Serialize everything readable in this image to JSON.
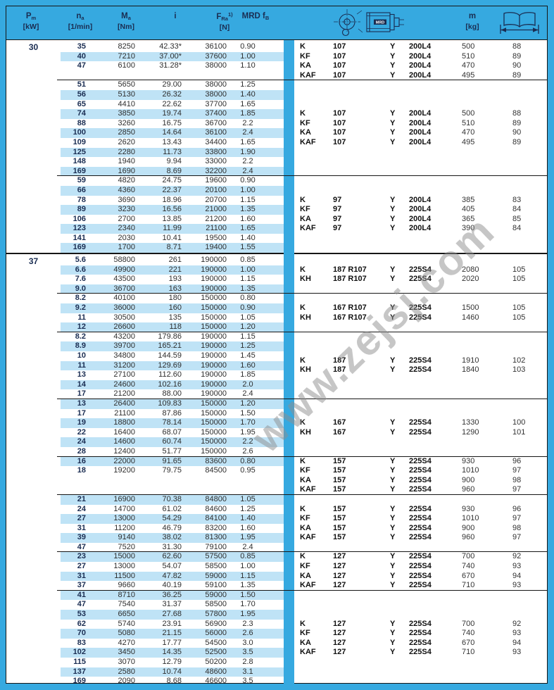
{
  "watermark": "www.zejsj.com",
  "colors": {
    "page_blue": "#36a9e0",
    "row_highlight_blue": "#bfe3f6",
    "header_text_navy": "#1a2d52",
    "line_black": "#161616"
  },
  "header": {
    "pm_main": "P",
    "pm_sub": "m",
    "pm_unit": "[kW]",
    "na_main": "n",
    "na_sub": "a",
    "na_unit": "[1/min]",
    "ma_main": "M",
    "ma_sub": "a",
    "ma_unit": "[Nm]",
    "i_label": "i",
    "fra_main": "F",
    "fra_sub": "Ra",
    "fra_sup": "1)",
    "fra_unit": "[N]",
    "mrd_main": "MRD f",
    "mrd_sub": "B",
    "m_main": "m",
    "m_unit": "[kg]",
    "gearmotor_icon": "gearmotor-drawing-icon",
    "mrd_icon_label": "MRD",
    "book_icon": "open-book-page-range-icon"
  },
  "columns_note": "row cells order: na, Ma, i, FRa, MRD fB ; annotation cells order: type, size, Y, motor, mass, page",
  "sections": [
    {
      "pm": "30",
      "groups": [
        {
          "shade_start": "white",
          "gap_after": 1,
          "rows": [
            [
              "35",
              "8250",
              "42.33*",
              "36100",
              "0.90"
            ],
            [
              "40",
              "7210",
              "37.00*",
              "37600",
              "1.00"
            ],
            [
              "47",
              "6100",
              "31.28*",
              "38000",
              "1.10"
            ]
          ],
          "annotation": [
            [
              "K",
              "107",
              "Y",
              "200L4",
              "500",
              "88"
            ],
            [
              "KF",
              "107",
              "Y",
              "200L4",
              "510",
              "89"
            ],
            [
              "KA",
              "107",
              "Y",
              "200L4",
              "470",
              "90"
            ],
            [
              "KAF",
              "107",
              "Y",
              "200L4",
              "495",
              "89"
            ]
          ]
        },
        {
          "shade_start": "white",
          "gap_after": 0,
          "rows": [
            [
              "51",
              "5650",
              "29.00",
              "38000",
              "1.25"
            ],
            [
              "56",
              "5130",
              "26.32",
              "38000",
              "1.40"
            ],
            [
              "65",
              "4410",
              "22.62",
              "37700",
              "1.65"
            ],
            [
              "74",
              "3850",
              "19.74",
              "37400",
              "1.85"
            ],
            [
              "88",
              "3260",
              "16.75",
              "36700",
              "2.2"
            ],
            [
              "100",
              "2850",
              "14.64",
              "36100",
              "2.4"
            ],
            [
              "109",
              "2620",
              "13.43",
              "34400",
              "1.65"
            ],
            [
              "125",
              "2280",
              "11.73",
              "33800",
              "1.90"
            ],
            [
              "148",
              "1940",
              "9.94",
              "33000",
              "2.2"
            ],
            [
              "169",
              "1690",
              "8.69",
              "32200",
              "2.4"
            ]
          ],
          "annotation": [
            [
              "K",
              "107",
              "Y",
              "200L4",
              "500",
              "88"
            ],
            [
              "KF",
              "107",
              "Y",
              "200L4",
              "510",
              "89"
            ],
            [
              "KA",
              "107",
              "Y",
              "200L4",
              "470",
              "90"
            ],
            [
              "KAF",
              "107",
              "Y",
              "200L4",
              "495",
              "89"
            ]
          ]
        },
        {
          "shade_start": "white",
          "gap_after": 0,
          "rows": [
            [
              "59",
              "4820",
              "24.75",
              "19600",
              "0.90"
            ],
            [
              "66",
              "4360",
              "22.37",
              "20100",
              "1.00"
            ],
            [
              "78",
              "3690",
              "18.96",
              "20700",
              "1.15"
            ],
            [
              "89",
              "3230",
              "16.56",
              "21000",
              "1.35"
            ],
            [
              "106",
              "2700",
              "13.85",
              "21200",
              "1.60"
            ],
            [
              "123",
              "2340",
              "11.99",
              "21100",
              "1.65"
            ],
            [
              "141",
              "2030",
              "10.41",
              "19500",
              "1.40"
            ],
            [
              "169",
              "1700",
              "8.71",
              "19400",
              "1.55"
            ]
          ],
          "annotation": [
            [
              "K",
              "97",
              "Y",
              "200L4",
              "385",
              "83"
            ],
            [
              "KF",
              "97",
              "Y",
              "200L4",
              "405",
              "84"
            ],
            [
              "KA",
              "97",
              "Y",
              "200L4",
              "365",
              "85"
            ],
            [
              "KAF",
              "97",
              "Y",
              "200L4",
              "390",
              "84"
            ]
          ]
        }
      ]
    },
    {
      "pm": "37",
      "groups": [
        {
          "shade_start": "white",
          "gap_after": 0,
          "rows": [
            [
              "5.6",
              "58800",
              "261",
              "190000",
              "0.85"
            ],
            [
              "6.6",
              "49900",
              "221",
              "190000",
              "1.00"
            ],
            [
              "7.6",
              "43500",
              "193",
              "190000",
              "1.15"
            ],
            [
              "9.0",
              "36700",
              "163",
              "190000",
              "1.35"
            ]
          ],
          "annotation": [
            [
              "K",
              "187 R107",
              "Y",
              "225S4",
              "2080",
              "105"
            ],
            [
              "KH",
              "187 R107",
              "Y",
              "225S4",
              "2020",
              "105"
            ]
          ]
        },
        {
          "shade_start": "white",
          "gap_after": 0,
          "rows": [
            [
              "8.2",
              "40100",
              "180",
              "150000",
              "0.80"
            ],
            [
              "9.2",
              "36000",
              "160",
              "150000",
              "0.90"
            ],
            [
              "11",
              "30500",
              "135",
              "150000",
              "1.05"
            ],
            [
              "12",
              "26600",
              "118",
              "150000",
              "1.20"
            ]
          ],
          "annotation": [
            [
              "K",
              "167 R107",
              "Y",
              "225S4",
              "1500",
              "105"
            ],
            [
              "KH",
              "167 R107",
              "Y",
              "225S4",
              "1460",
              "105"
            ]
          ]
        },
        {
          "shade_start": "white",
          "gap_after": 0,
          "rows": [
            [
              "8.2",
              "43200",
              "179.86",
              "190000",
              "1.15"
            ],
            [
              "8.9",
              "39700",
              "165.21",
              "190000",
              "1.25"
            ],
            [
              "10",
              "34800",
              "144.59",
              "190000",
              "1.45"
            ],
            [
              "11",
              "31200",
              "129.69",
              "190000",
              "1.60"
            ],
            [
              "13",
              "27100",
              "112.60",
              "190000",
              "1.85"
            ],
            [
              "14",
              "24600",
              "102.16",
              "190000",
              "2.0"
            ],
            [
              "17",
              "21200",
              "88.00",
              "190000",
              "2.4"
            ]
          ],
          "annotation": [
            [
              "K",
              "187",
              "Y",
              "225S4",
              "1910",
              "102"
            ],
            [
              "KH",
              "187",
              "Y",
              "225S4",
              "1840",
              "103"
            ]
          ]
        },
        {
          "shade_start": "blue",
          "gap_after": 0,
          "rows": [
            [
              "13",
              "26400",
              "109.83",
              "150000",
              "1.20"
            ],
            [
              "17",
              "21100",
              "87.86",
              "150000",
              "1.50"
            ],
            [
              "19",
              "18800",
              "78.14",
              "150000",
              "1.70"
            ],
            [
              "22",
              "16400",
              "68.07",
              "150000",
              "1.95"
            ],
            [
              "24",
              "14600",
              "60.74",
              "150000",
              "2.2"
            ],
            [
              "28",
              "12400",
              "51.77",
              "150000",
              "2.6"
            ]
          ],
          "annotation": [
            [
              "K",
              "167",
              "Y",
              "225S4",
              "1330",
              "100"
            ],
            [
              "KH",
              "167",
              "Y",
              "225S4",
              "1290",
              "101"
            ]
          ]
        },
        {
          "shade_start": "blue",
          "gap_after": 2,
          "rows": [
            [
              "16",
              "22000",
              "91.65",
              "83600",
              "0.80"
            ],
            [
              "18",
              "19200",
              "79.75",
              "84500",
              "0.95"
            ]
          ],
          "annotation": [
            [
              "K",
              "157",
              "Y",
              "225S4",
              "930",
              "96"
            ],
            [
              "KF",
              "157",
              "Y",
              "225S4",
              "1010",
              "97"
            ],
            [
              "KA",
              "157",
              "Y",
              "225S4",
              "900",
              "98"
            ],
            [
              "KAF",
              "157",
              "Y",
              "225S4",
              "960",
              "97"
            ]
          ]
        },
        {
          "shade_start": "blue",
          "gap_after": 0,
          "rows": [
            [
              "21",
              "16900",
              "70.38",
              "84800",
              "1.05"
            ],
            [
              "24",
              "14700",
              "61.02",
              "84600",
              "1.25"
            ],
            [
              "27",
              "13000",
              "54.29",
              "84100",
              "1.40"
            ],
            [
              "31",
              "11200",
              "46.79",
              "83200",
              "1.60"
            ],
            [
              "39",
              "9140",
              "38.02",
              "81300",
              "1.95"
            ],
            [
              "47",
              "7520",
              "31.30",
              "79100",
              "2.4"
            ]
          ],
          "annotation": [
            [
              "K",
              "157",
              "Y",
              "225S4",
              "930",
              "96"
            ],
            [
              "KF",
              "157",
              "Y",
              "225S4",
              "1010",
              "97"
            ],
            [
              "KA",
              "157",
              "Y",
              "225S4",
              "900",
              "98"
            ],
            [
              "KAF",
              "157",
              "Y",
              "225S4",
              "960",
              "97"
            ]
          ]
        },
        {
          "shade_start": "blue",
          "gap_after": 0,
          "rows": [
            [
              "23",
              "15000",
              "62.60",
              "57500",
              "0.85"
            ],
            [
              "27",
              "13000",
              "54.07",
              "58500",
              "1.00"
            ],
            [
              "31",
              "11500",
              "47.82",
              "59000",
              "1.15"
            ],
            [
              "37",
              "9660",
              "40.19",
              "59100",
              "1.35"
            ]
          ],
          "annotation": [
            [
              "K",
              "127",
              "Y",
              "225S4",
              "700",
              "92"
            ],
            [
              "KF",
              "127",
              "Y",
              "225S4",
              "740",
              "93"
            ],
            [
              "KA",
              "127",
              "Y",
              "225S4",
              "670",
              "94"
            ],
            [
              "KAF",
              "127",
              "Y",
              "225S4",
              "710",
              "93"
            ]
          ]
        },
        {
          "shade_start": "blue",
          "gap_after": 0,
          "rows": [
            [
              "41",
              "8710",
              "36.25",
              "59000",
              "1.50"
            ],
            [
              "47",
              "7540",
              "31.37",
              "58500",
              "1.70"
            ],
            [
              "53",
              "6650",
              "27.68",
              "57800",
              "1.95"
            ],
            [
              "62",
              "5740",
              "23.91",
              "56900",
              "2.3"
            ],
            [
              "70",
              "5080",
              "21.15",
              "56000",
              "2.6"
            ],
            [
              "83",
              "4270",
              "17.77",
              "54500",
              "3.0"
            ],
            [
              "102",
              "3450",
              "14.35",
              "52500",
              "3.5"
            ],
            [
              "115",
              "3070",
              "12.79",
              "50200",
              "2.8"
            ],
            [
              "137",
              "2580",
              "10.74",
              "48600",
              "3.1"
            ],
            [
              "169",
              "2090",
              "8.68",
              "46600",
              "3.5"
            ]
          ],
          "annotation": [
            [
              "K",
              "127",
              "Y",
              "225S4",
              "700",
              "92"
            ],
            [
              "KF",
              "127",
              "Y",
              "225S4",
              "740",
              "93"
            ],
            [
              "KA",
              "127",
              "Y",
              "225S4",
              "670",
              "94"
            ],
            [
              "KAF",
              "127",
              "Y",
              "225S4",
              "710",
              "93"
            ]
          ]
        }
      ]
    }
  ]
}
